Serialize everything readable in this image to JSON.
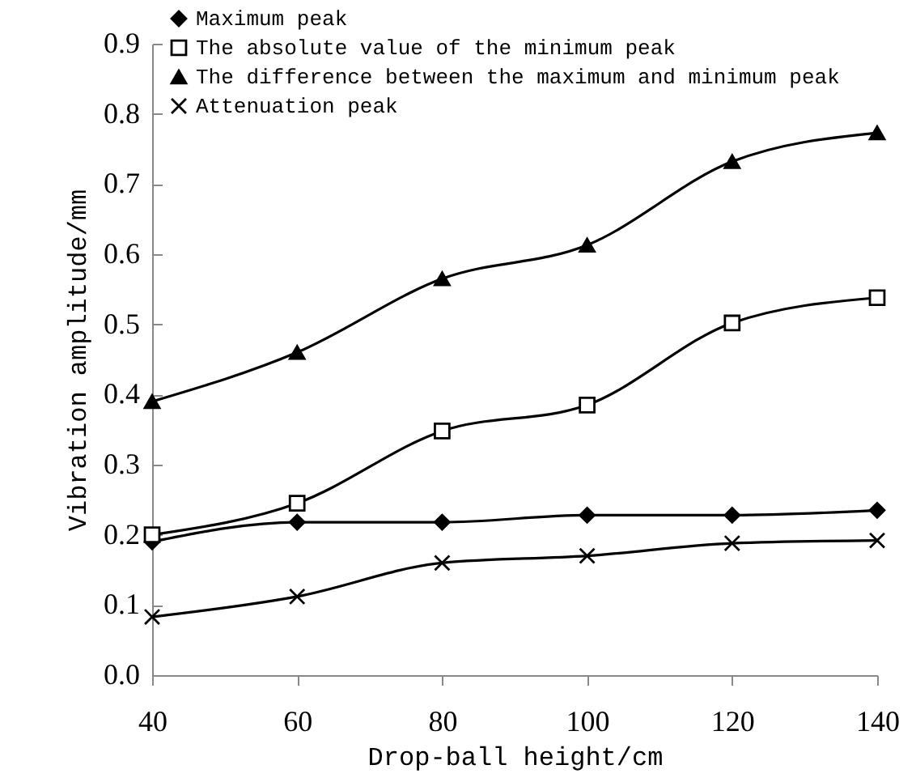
{
  "chart_data": {
    "type": "line",
    "xlabel": "Drop-ball height/cm",
    "ylabel": "Vibration amplitude/mm",
    "x": [
      40,
      60,
      80,
      100,
      120,
      140
    ],
    "series": [
      {
        "name": "Maximum peak",
        "color": "#000000",
        "marker": "diamond",
        "values": [
          0.19,
          0.218,
          0.218,
          0.228,
          0.228,
          0.235
        ]
      },
      {
        "name": "The absolute value of the minimum peak",
        "color": "#000000",
        "marker": "square",
        "values": [
          0.2,
          0.245,
          0.348,
          0.385,
          0.502,
          0.538
        ]
      },
      {
        "name": "The difference between the maximum and minimum peak",
        "color": "#000000",
        "marker": "triangle",
        "values": [
          0.39,
          0.46,
          0.565,
          0.613,
          0.732,
          0.773
        ]
      },
      {
        "name": "Attenuation peak",
        "color": "#000000",
        "marker": "cross",
        "values": [
          0.083,
          0.112,
          0.16,
          0.17,
          0.188,
          0.192
        ]
      }
    ],
    "xlim": [
      40,
      140
    ],
    "xticks": [
      40,
      60,
      80,
      100,
      120,
      140
    ],
    "ylim": [
      0,
      0.9
    ],
    "yticks": [
      {
        "value": 0,
        "label": "0.0"
      },
      {
        "value": 0.1,
        "label": "0.1"
      },
      {
        "value": 0.2,
        "label": "0.2"
      },
      {
        "value": 0.3,
        "label": "0.3"
      },
      {
        "value": 0.4,
        "label": "0.4"
      },
      {
        "value": 0.5,
        "label": "0.5"
      },
      {
        "value": 0.6,
        "label": "0.6"
      },
      {
        "value": 0.7,
        "label": "0.7"
      },
      {
        "value": 0.8,
        "label": "0.8"
      },
      {
        "value": 0.9,
        "label": "0.9"
      }
    ],
    "grid": false,
    "legend": "top left",
    "line_style": "solid"
  }
}
